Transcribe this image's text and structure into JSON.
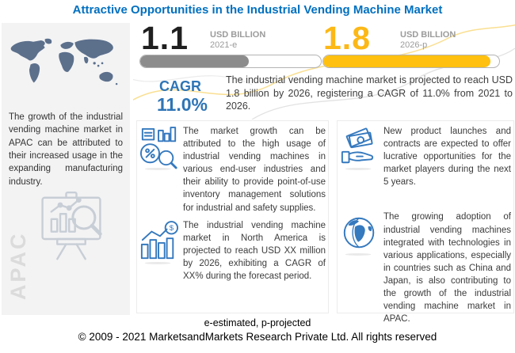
{
  "title": "Attractive Opportunities in the Industrial Vending Machine Market",
  "chart_data": {
    "type": "bar",
    "categories": [
      "2021-e",
      "2026-p"
    ],
    "values": [
      1.1,
      1.8
    ],
    "title": "Attractive Opportunities in the Industrial Vending Machine Market",
    "xlabel": "",
    "ylabel": "USD Billion",
    "ylim": [
      0,
      2
    ],
    "annotations": [
      "CAGR 11.0% from 2021 to 2026"
    ],
    "legend_position": "none",
    "grid": false
  },
  "colors": {
    "title_blue": "#0070C0",
    "accent_blue": "#2E75B6",
    "accent_yellow": "#FFC010",
    "bar_gray": "#8C8C8C",
    "sidebar_bg": "#F3F3F4",
    "map_gray_blue": "#5C708C",
    "watermark_gray": "#DBDBDB",
    "body_text": "#3B3B3B"
  },
  "sidebar": {
    "description": "The growth of the industrial vending machine market in APAC can be attributed to their increased usage in the expanding manufacturing industry.",
    "region_label": "APAC"
  },
  "stats": [
    {
      "value": "1.1",
      "unit": "USD BILLION",
      "year": "2021-e",
      "fill_percent": 60,
      "color": "#8C8C8C"
    },
    {
      "value": "1.8",
      "unit": "USD BILLION",
      "year": "2026-p",
      "fill_percent": 95,
      "color": "#FFC010"
    }
  ],
  "cagr": {
    "label": "CAGR",
    "value": "11.0%",
    "description": "The industrial vending machine market is projected to reach USD 1.8 billion by 2026, registering a CAGR of 11.0% from 2021 to 2026."
  },
  "insights_left": [
    {
      "icon": "market-analysis-icon",
      "text": "The market growth can be attributed to the high usage of industrial vending machines in various end-user industries and their ability to provide point-of-use inventory management solutions for industrial and safety supplies."
    },
    {
      "icon": "growth-chart-dollar-icon",
      "text": "The industrial vending machine market in North America is projected to reach USD XX million by 2026, exhibiting a CAGR of XX% during the forecast period."
    }
  ],
  "insights_right": [
    {
      "icon": "money-hand-icon",
      "text": "New product launches and contracts are expected to offer lucrative opportunities for the market players during the next 5 years."
    },
    {
      "icon": "globe-icon",
      "text": "The growing adoption of industrial vending machines integrated with technologies in various applications, especially in countries such as China and Japan, is also contributing to the growth of the industrial vending machine market in APAC."
    }
  ],
  "icons": {
    "dollar_glyph": "$"
  },
  "footer": {
    "note": "e-estimated, p-projected",
    "copyright": "© 2009 - 2021 MarketsandMarkets Research Private Ltd. All rights reserved"
  }
}
